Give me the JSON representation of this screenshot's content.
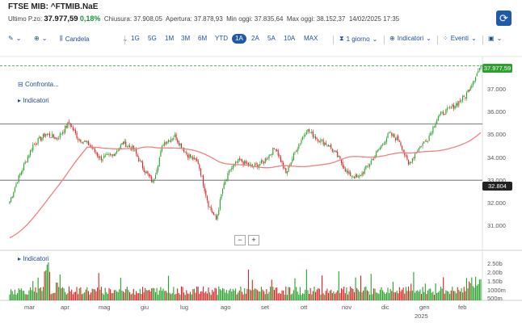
{
  "header": {
    "title": "FTSE MIB: ^FTMIB.NaE",
    "last_label": "Ultimo P.zo:",
    "last_value": "37.977,59",
    "change": "0,18%",
    "close_label": "Chiusura:",
    "close_value": "37.908,05",
    "open_label": "Apertura:",
    "open_value": "37.878,93",
    "low_label": "Min oggi:",
    "low_value": "37.835,64",
    "high_label": "Max oggi:",
    "high_value": "38.152,37",
    "datetime": "14/02/2025 17:35"
  },
  "toolbar": {
    "chart_type": "Candela",
    "ranges": [
      "1G",
      "5G",
      "1M",
      "3M",
      "6M",
      "YTD",
      "1A",
      "2A",
      "5A",
      "10A",
      "MAX"
    ],
    "selected_range": "1A",
    "interval": "1 giorno",
    "indicators": "Indicatori",
    "events": "Eventi"
  },
  "overlay": {
    "compare": "Confronta...",
    "indicators": "Indicatori",
    "volume_indicators": "Indicatori",
    "zoom_out": "−",
    "zoom_in": "+"
  },
  "colors": {
    "up": "#2ca02c",
    "down": "#d62728",
    "ma": "#f08080",
    "accent": "#1e5aa8",
    "last_tag": "#2ca02c",
    "level_tag": "#222222"
  },
  "chart_data": {
    "type": "candlestick",
    "price_ticks": [
      "37.000",
      "36.000",
      "35.000",
      "34.000",
      "33.000",
      "32.000",
      "31.000"
    ],
    "volume_ticks": [
      "2.50b",
      "2.00b",
      "1.50b",
      "1000m",
      "500m"
    ],
    "x_labels": [
      "mar",
      "apr",
      "mag",
      "giu",
      "lug",
      "ago",
      "set",
      "ott",
      "nov",
      "dic",
      "gen",
      "feb"
    ],
    "year_label": "2025",
    "last_price_tag": "37.977,59",
    "level_tag": "32.804",
    "support_levels": [
      35.35,
      32.804
    ],
    "ylim": [
      30.0,
      38.4
    ],
    "anchors": [
      [
        0,
        31.85
      ],
      [
        6,
        32.8
      ],
      [
        18,
        34.4
      ],
      [
        28,
        34.9
      ],
      [
        37,
        34.7
      ],
      [
        46,
        35.4
      ],
      [
        53,
        34.7
      ],
      [
        62,
        34.4
      ],
      [
        70,
        33.8
      ],
      [
        79,
        33.9
      ],
      [
        88,
        34.5
      ],
      [
        96,
        34.2
      ],
      [
        104,
        33.3
      ],
      [
        111,
        32.7
      ],
      [
        119,
        34.5
      ],
      [
        128,
        34.8
      ],
      [
        137,
        34.0
      ],
      [
        146,
        33.6
      ],
      [
        154,
        31.7
      ],
      [
        160,
        31.0
      ],
      [
        165,
        32.4
      ],
      [
        171,
        33.3
      ],
      [
        178,
        33.7
      ],
      [
        188,
        33.4
      ],
      [
        196,
        33.6
      ],
      [
        206,
        34.3
      ],
      [
        214,
        33.1
      ],
      [
        222,
        34.2
      ],
      [
        230,
        35.1
      ],
      [
        238,
        34.7
      ],
      [
        247,
        34.4
      ],
      [
        255,
        33.8
      ],
      [
        262,
        33.1
      ],
      [
        270,
        32.9
      ],
      [
        278,
        33.5
      ],
      [
        286,
        34.2
      ],
      [
        294,
        34.9
      ],
      [
        302,
        34.6
      ],
      [
        309,
        33.5
      ],
      [
        316,
        34.2
      ],
      [
        324,
        34.7
      ],
      [
        332,
        35.7
      ],
      [
        340,
        36.0
      ],
      [
        347,
        36.3
      ],
      [
        353,
        36.6
      ],
      [
        359,
        37.3
      ],
      [
        365,
        37.98
      ]
    ]
  }
}
